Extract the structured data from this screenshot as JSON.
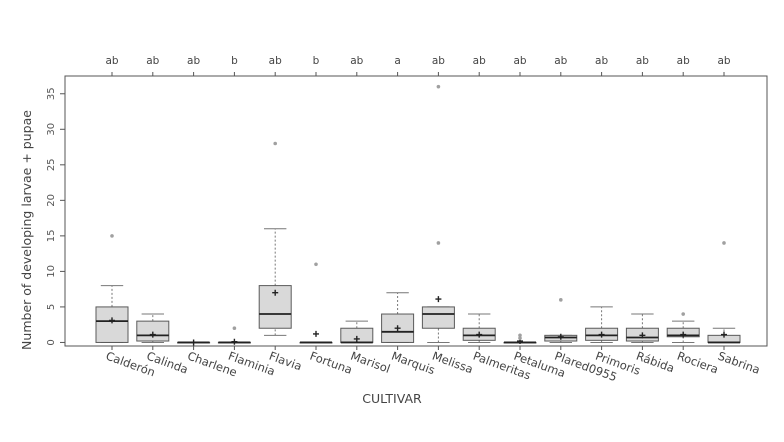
{
  "chart_data": {
    "type": "boxplot",
    "xlabel": "CULTIVAR",
    "ylabel": "Number of developing larvae + pupae",
    "ylim": [
      -0.5,
      37.5
    ],
    "yticks": [
      0,
      5,
      10,
      15,
      20,
      25,
      30,
      35
    ],
    "grid": false,
    "colors": {
      "box_fill": "#d9d9d9",
      "box_stroke": "#5a5a5a",
      "outlier": "#a0a0a0",
      "mean_marker": "#222222"
    },
    "categories": [
      "Calderón",
      "Calinda",
      "Charlene",
      "Flaminia",
      "Flavia",
      "Fortuna",
      "Marisol",
      "Marquis",
      "Melissa",
      "Palmeritas",
      "Petaluma",
      "Plared0955",
      "Primoris",
      "Rábida",
      "Rociera",
      "Sabrina"
    ],
    "letters": [
      "ab",
      "ab",
      "ab",
      "b",
      "ab",
      "b",
      "ab",
      "a",
      "ab",
      "ab",
      "ab",
      "ab",
      "ab",
      "ab",
      "ab",
      "ab"
    ],
    "boxes": [
      {
        "whisker_low": 0,
        "q1": 0,
        "median": 3,
        "q3": 5,
        "whisker_high": 8,
        "mean": 3.1,
        "outliers": [
          15
        ]
      },
      {
        "whisker_low": 0,
        "q1": 0.2,
        "median": 1,
        "q3": 3,
        "whisker_high": 4,
        "mean": 1.1,
        "outliers": []
      },
      {
        "whisker_low": 0,
        "q1": 0,
        "median": 0,
        "q3": 0,
        "whisker_high": 0,
        "mean": 0,
        "outliers": []
      },
      {
        "whisker_low": 0,
        "q1": 0,
        "median": 0,
        "q3": 0,
        "whisker_high": 0,
        "mean": 0.1,
        "outliers": [
          2
        ]
      },
      {
        "whisker_low": 1,
        "q1": 2,
        "median": 4,
        "q3": 8,
        "whisker_high": 16,
        "mean": 7,
        "outliers": [
          28
        ]
      },
      {
        "whisker_low": 0,
        "q1": 0,
        "median": 0,
        "q3": 0,
        "whisker_high": 0,
        "mean": 1.2,
        "outliers": [
          11
        ]
      },
      {
        "whisker_low": 0,
        "q1": 0,
        "median": 0,
        "q3": 2,
        "whisker_high": 3,
        "mean": 0.5,
        "outliers": []
      },
      {
        "whisker_low": 0,
        "q1": 0,
        "median": 1.5,
        "q3": 4,
        "whisker_high": 7,
        "mean": 2,
        "outliers": []
      },
      {
        "whisker_low": 0,
        "q1": 2,
        "median": 4,
        "q3": 5,
        "whisker_high": 5,
        "mean": 6.1,
        "outliers": [
          14,
          36
        ]
      },
      {
        "whisker_low": 0,
        "q1": 0.3,
        "median": 1,
        "q3": 2,
        "whisker_high": 4,
        "mean": 1.1,
        "outliers": []
      },
      {
        "whisker_low": 0,
        "q1": 0,
        "median": 0,
        "q3": 0,
        "whisker_high": 0,
        "mean": 0.2,
        "outliers": [
          0.6,
          1
        ]
      },
      {
        "whisker_low": 0,
        "q1": 0.2,
        "median": 0.7,
        "q3": 1,
        "whisker_high": 1,
        "mean": 0.8,
        "outliers": [
          6
        ]
      },
      {
        "whisker_low": 0,
        "q1": 0.3,
        "median": 1,
        "q3": 2,
        "whisker_high": 5,
        "mean": 1.1,
        "outliers": []
      },
      {
        "whisker_low": 0,
        "q1": 0.2,
        "median": 0.7,
        "q3": 2,
        "whisker_high": 4,
        "mean": 1,
        "outliers": []
      },
      {
        "whisker_low": 0,
        "q1": 0.8,
        "median": 1,
        "q3": 2,
        "whisker_high": 3,
        "mean": 1.1,
        "outliers": [
          4
        ]
      },
      {
        "whisker_low": 0,
        "q1": 0,
        "median": 0,
        "q3": 1,
        "whisker_high": 2,
        "mean": 1.1,
        "outliers": [
          14
        ]
      }
    ]
  }
}
